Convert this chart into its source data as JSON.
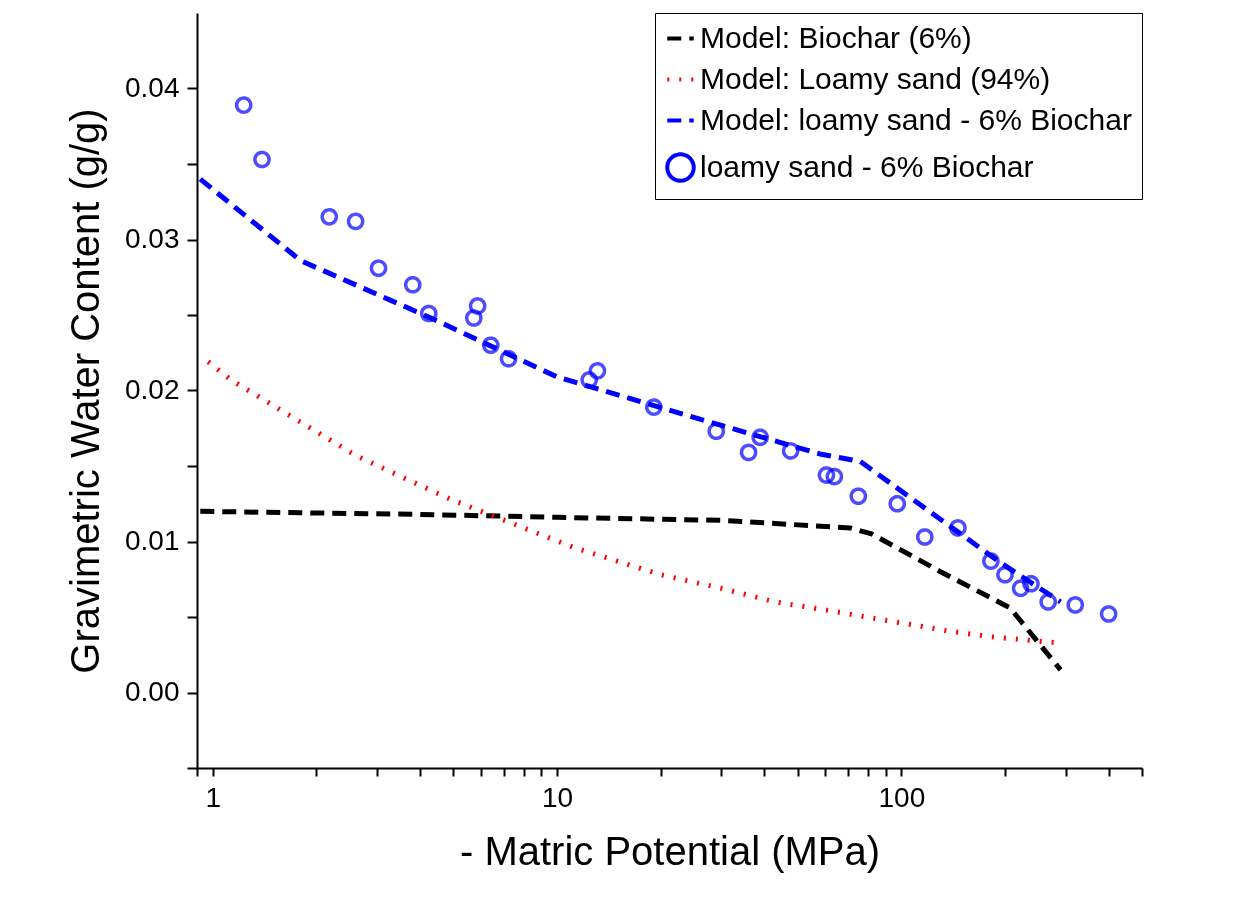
{
  "chart_data": {
    "type": "line",
    "xlabel": "- Matric Potential (MPa)",
    "ylabel": "Gravimetric Water Content (g/g)",
    "log": "x",
    "legend": "top right",
    "grid": false,
    "xlim": [
      0.9,
      500
    ],
    "xticks": [
      {
        "value": 0.9,
        "label": null
      },
      1,
      {
        "value": 2,
        "label": null
      },
      {
        "value": 3,
        "label": null
      },
      {
        "value": 4,
        "label": null
      },
      {
        "value": 5,
        "label": null
      },
      {
        "value": 6,
        "label": null
      },
      {
        "value": 7,
        "label": null
      },
      {
        "value": 8,
        "label": null
      },
      {
        "value": 9,
        "label": null
      },
      10,
      {
        "value": 20,
        "label": null
      },
      {
        "value": 30,
        "label": null
      },
      {
        "value": 40,
        "label": null
      },
      {
        "value": 50,
        "label": null
      },
      {
        "value": 60,
        "label": null
      },
      {
        "value": 70,
        "label": null
      },
      {
        "value": 80,
        "label": null
      },
      {
        "value": 90,
        "label": null
      },
      100,
      {
        "value": 200,
        "label": null
      },
      {
        "value": 300,
        "label": null
      },
      {
        "value": 400,
        "label": null
      },
      {
        "value": 500,
        "label": null
      }
    ],
    "ylim": [
      -0.005,
      0.045
    ],
    "yticks": [
      {
        "value": -0.005,
        "label": null
      },
      {
        "value": 0,
        "label": "0.00"
      },
      {
        "value": 0.005,
        "label": null
      },
      {
        "value": 0.01,
        "label": "0.01"
      },
      {
        "value": 0.015,
        "label": null
      },
      {
        "value": 0.02,
        "label": "0.02"
      },
      {
        "value": 0.025,
        "label": null
      },
      {
        "value": 0.03,
        "label": "0.03"
      },
      {
        "value": 0.035,
        "label": null
      },
      {
        "value": 0.04,
        "label": "0.04"
      }
    ],
    "series": [
      {
        "name": "Model: Biochar (6%)",
        "color": "#000000",
        "line_style": "dashed",
        "marker": "none",
        "x": [
          0.92,
          1.8,
          3.9,
          10,
          30,
          71,
          82,
          130,
          207,
          290
        ],
        "values": [
          0.012,
          0.0119,
          0.0118,
          0.0116,
          0.0114,
          0.0109,
          0.0105,
          0.008,
          0.0056,
          0.0015
        ]
      },
      {
        "name": "Model: Loamy sand (94%)",
        "color": "#ff0000",
        "line_style": "dotted",
        "marker": "none",
        "x": [
          0.97,
          1.13,
          2.6,
          3.3,
          4.9,
          11.2,
          20,
          30,
          43,
          59,
          135,
          180,
          280
        ],
        "values": [
          0.0219,
          0.0207,
          0.0157,
          0.0146,
          0.0128,
          0.0096,
          0.0078,
          0.0069,
          0.006,
          0.0055,
          0.0041,
          0.0037,
          0.0033
        ]
      },
      {
        "name": "Model: loamy sand - 6% Biochar",
        "color": "#0000ff",
        "line_style": "dashed",
        "marker": "none",
        "x": [
          0.92,
          1.8,
          4.3,
          10,
          26,
          58,
          76,
          114,
          194,
          290
        ],
        "values": [
          0.034,
          0.0286,
          0.0248,
          0.0209,
          0.0181,
          0.0158,
          0.0153,
          0.0124,
          0.0086,
          0.006
        ]
      },
      {
        "name": "loamy sand - 6% Biochar",
        "type": "scatter",
        "color": "#0000ff",
        "marker": "circle",
        "x": [
          1.23,
          1.39,
          2.18,
          2.6,
          3.03,
          3.81,
          4.24,
          5.73,
          5.88,
          6.42,
          7.23,
          12.4,
          13.1,
          19.1,
          29,
          36,
          38.9,
          47.7,
          60.6,
          63.9,
          75,
          97.3,
          117,
          146,
          182,
          200,
          222,
          238,
          267,
          320,
          400
        ],
        "values": [
          0.0389,
          0.0353,
          0.0315,
          0.0312,
          0.0281,
          0.027,
          0.0251,
          0.0248,
          0.0256,
          0.023,
          0.0221,
          0.0207,
          0.0213,
          0.0189,
          0.0173,
          0.0159,
          0.0169,
          0.016,
          0.0144,
          0.0143,
          0.013,
          0.0125,
          0.0103,
          0.0109,
          0.0087,
          0.0078,
          0.0069,
          0.0072,
          0.006,
          0.0058,
          0.0052
        ]
      }
    ]
  }
}
